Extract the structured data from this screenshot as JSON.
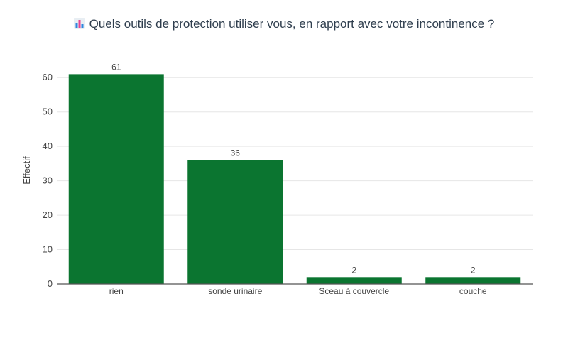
{
  "chart_data": {
    "type": "bar",
    "title": "Quels outils de protection utiliser vous, en rapport avec votre incontinence ?",
    "title_icon": "bar-chart-icon",
    "categories": [
      "rien",
      "sonde urinaire",
      "Sceau à couvercle",
      "couche"
    ],
    "values": [
      61,
      36,
      2,
      2
    ],
    "xlabel": "",
    "ylabel": "Effectif",
    "ylim": [
      0,
      65
    ],
    "yticks": [
      0,
      10,
      20,
      30,
      40,
      50,
      60
    ],
    "grid": true,
    "legend": "none",
    "bar_color": "#0b7530"
  }
}
